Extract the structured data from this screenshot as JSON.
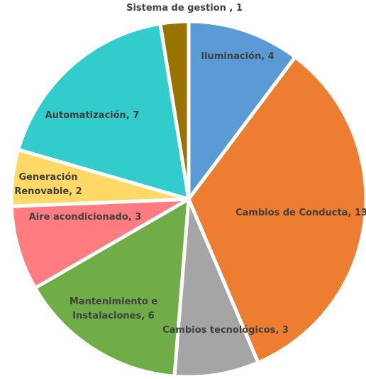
{
  "chart_data": {
    "type": "pie",
    "categories": [
      "Iluminación",
      "Cambios de Conducta",
      "Cambios tecnológicos",
      "Mantenimiento e Instalaciones",
      "Aire acondicionado",
      "Generación Renovable",
      "Automatización",
      "Sistema de gestion"
    ],
    "values": [
      4,
      13,
      3,
      6,
      3,
      2,
      7,
      1
    ],
    "value_labels": [
      "Iluminación, 4",
      "Cambios de Conducta, 13",
      "Cambios tecnológicos, 3",
      "Mantenimiento e Instalaciones, 6",
      "Aire acondicionado, 3",
      "Generación Renovable, 2",
      "Automatización, 7",
      "Sistema de gestion , 1"
    ],
    "colors": [
      "#5b9bd5",
      "#ed7d31",
      "#a5a5a5",
      "#70ad47",
      "#ff7c80",
      "#ffd966",
      "#33cccc",
      "#997300"
    ]
  }
}
